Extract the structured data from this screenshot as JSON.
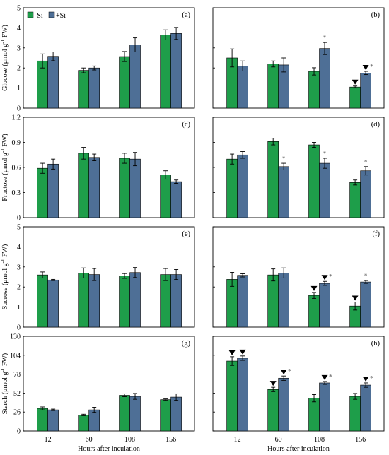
{
  "figure": {
    "x_axis_label": "Hours after inculation",
    "colors": {
      "noSi": "#1e9e4a",
      "Si": "#4e6f96",
      "axis": "#000000",
      "error": "#000000"
    }
  },
  "chart_data": [
    {
      "type": "bar",
      "panel": "(a)",
      "ylabel_prefix": "Glucose (μmol g",
      "ylabel_suffix": " FW)",
      "ylim": [
        0,
        5
      ],
      "yticks": [
        0,
        1,
        2,
        3,
        4,
        5
      ],
      "ytick_labels": [
        "0",
        "1",
        "2",
        "3",
        "4",
        "5"
      ],
      "categories": [
        "12",
        "60",
        "108",
        "156"
      ],
      "show_xticks": false,
      "legend": [
        "-Si",
        "+Si"
      ],
      "series": [
        {
          "name": "-Si",
          "values": [
            2.35,
            1.88,
            2.57,
            3.65
          ],
          "errors": [
            0.35,
            0.12,
            0.25,
            0.25
          ],
          "down": [
            false,
            false,
            false,
            false
          ],
          "star": [
            false,
            false,
            false,
            false
          ]
        },
        {
          "name": "+Si",
          "values": [
            2.58,
            2.0,
            3.15,
            3.72
          ],
          "errors": [
            0.22,
            0.1,
            0.35,
            0.3
          ],
          "down": [
            false,
            false,
            false,
            false
          ],
          "star": [
            false,
            false,
            false,
            false
          ]
        }
      ]
    },
    {
      "type": "bar",
      "panel": "(b)",
      "ylim": [
        0,
        5
      ],
      "yticks": [
        0,
        1,
        2,
        3,
        4,
        5
      ],
      "ytick_labels": [],
      "categories": [
        "12",
        "60",
        "108",
        "156"
      ],
      "show_xticks": false,
      "series": [
        {
          "name": "-Si",
          "values": [
            2.5,
            2.2,
            1.83,
            1.05
          ],
          "errors": [
            0.45,
            0.15,
            0.18,
            0.05
          ],
          "down": [
            false,
            false,
            false,
            true
          ],
          "star": [
            false,
            false,
            false,
            false
          ]
        },
        {
          "name": "+Si",
          "values": [
            2.1,
            2.15,
            2.97,
            1.75
          ],
          "errors": [
            0.25,
            0.35,
            0.3,
            0.08
          ],
          "down": [
            false,
            false,
            false,
            true
          ],
          "star": [
            false,
            false,
            true,
            true
          ]
        }
      ]
    },
    {
      "type": "bar",
      "panel": "(c)",
      "ylabel": "Fructose (μmol g",
      "ylabel_suffix": " FW)",
      "ylim": [
        0,
        1.2
      ],
      "yticks": [
        0,
        0.3,
        0.6,
        0.9,
        1.2
      ],
      "ytick_labels": [
        "0",
        "0.3",
        "0.6",
        "0.9",
        "1.2"
      ],
      "categories": [
        "12",
        "60",
        "108",
        "156"
      ],
      "show_xticks": false,
      "series": [
        {
          "name": "-Si",
          "values": [
            0.59,
            0.77,
            0.71,
            0.51
          ],
          "errors": [
            0.06,
            0.07,
            0.06,
            0.05
          ],
          "down": [
            false,
            false,
            false,
            false
          ],
          "star": [
            false,
            false,
            false,
            false
          ]
        },
        {
          "name": "+Si",
          "values": [
            0.64,
            0.72,
            0.7,
            0.43
          ],
          "errors": [
            0.06,
            0.04,
            0.08,
            0.02
          ],
          "down": [
            false,
            false,
            false,
            false
          ],
          "star": [
            false,
            false,
            false,
            false
          ]
        }
      ]
    },
    {
      "type": "bar",
      "panel": "(d)",
      "ylim": [
        0,
        1.2
      ],
      "yticks": [
        0,
        0.3,
        0.6,
        0.9,
        1.2
      ],
      "ytick_labels": [],
      "categories": [
        "12",
        "60",
        "108",
        "156"
      ],
      "show_xticks": false,
      "series": [
        {
          "name": "-Si",
          "values": [
            0.7,
            0.91,
            0.87,
            0.42
          ],
          "errors": [
            0.06,
            0.04,
            0.03,
            0.03
          ],
          "down": [
            false,
            false,
            false,
            false
          ],
          "star": [
            false,
            false,
            false,
            false
          ]
        },
        {
          "name": "+Si",
          "values": [
            0.75,
            0.61,
            0.65,
            0.56
          ],
          "errors": [
            0.04,
            0.04,
            0.06,
            0.05
          ],
          "down": [
            false,
            false,
            false,
            false
          ],
          "star": [
            false,
            true,
            true,
            true
          ]
        }
      ]
    },
    {
      "type": "bar",
      "panel": "(e)",
      "ylabel": "Sucrose (μmol g",
      "ylabel_suffix": " FW)",
      "ylim": [
        0,
        5
      ],
      "yticks": [
        0,
        1,
        2,
        3,
        4,
        5
      ],
      "ytick_labels": [
        "0",
        "1",
        "2",
        "3",
        "4",
        "5"
      ],
      "categories": [
        "12",
        "60",
        "108",
        "156"
      ],
      "show_xticks": false,
      "series": [
        {
          "name": "-Si",
          "values": [
            2.6,
            2.7,
            2.55,
            2.62
          ],
          "errors": [
            0.15,
            0.25,
            0.12,
            0.3
          ],
          "down": [
            false,
            false,
            false,
            false
          ],
          "star": [
            false,
            false,
            false,
            false
          ]
        },
        {
          "name": "+Si",
          "values": [
            2.35,
            2.62,
            2.72,
            2.62
          ],
          "errors": [
            0.03,
            0.3,
            0.25,
            0.25
          ],
          "down": [
            false,
            false,
            false,
            false
          ],
          "star": [
            false,
            false,
            false,
            false
          ]
        }
      ]
    },
    {
      "type": "bar",
      "panel": "(f)",
      "ylim": [
        0,
        5
      ],
      "yticks": [
        0,
        1,
        2,
        3,
        4,
        5
      ],
      "ytick_labels": [],
      "categories": [
        "12",
        "60",
        "108",
        "156"
      ],
      "show_xticks": false,
      "series": [
        {
          "name": "-Si",
          "values": [
            2.38,
            2.6,
            1.58,
            1.05
          ],
          "errors": [
            0.35,
            0.3,
            0.15,
            0.2
          ],
          "down": [
            false,
            false,
            true,
            true
          ],
          "star": [
            false,
            false,
            false,
            false
          ]
        },
        {
          "name": "+Si",
          "values": [
            2.58,
            2.7,
            2.18,
            2.25
          ],
          "errors": [
            0.08,
            0.25,
            0.1,
            0.07
          ],
          "down": [
            false,
            false,
            true,
            false
          ],
          "star": [
            false,
            false,
            true,
            true
          ]
        }
      ]
    },
    {
      "type": "bar",
      "panel": "(g)",
      "ylabel": "Starch (μmol g",
      "ylabel_suffix": " FW)",
      "ylim": [
        0,
        130
      ],
      "yticks": [
        0,
        26,
        52,
        78,
        104,
        130
      ],
      "ytick_labels": [
        "0",
        "26",
        "52",
        "78",
        "104",
        "130"
      ],
      "categories": [
        "12",
        "60",
        "108",
        "156"
      ],
      "show_xticks": true,
      "series": [
        {
          "name": "-Si",
          "values": [
            31,
            22,
            49,
            43
          ],
          "errors": [
            2.0,
            1.0,
            2.0,
            1.0
          ],
          "down": [
            false,
            false,
            false,
            false
          ],
          "star": [
            false,
            false,
            false,
            false
          ]
        },
        {
          "name": "+Si",
          "values": [
            29,
            29,
            47.5,
            46.5
          ],
          "errors": [
            1.0,
            3.5,
            4.0,
            4.5
          ],
          "down": [
            false,
            false,
            false,
            false
          ],
          "star": [
            false,
            false,
            false,
            false
          ]
        }
      ]
    },
    {
      "type": "bar",
      "panel": "(h)",
      "ylim": [
        0,
        130
      ],
      "yticks": [
        0,
        26,
        52,
        78,
        104,
        130
      ],
      "ytick_labels": [],
      "categories": [
        "12",
        "60",
        "108",
        "156"
      ],
      "show_xticks": true,
      "series": [
        {
          "name": "-Si",
          "values": [
            96,
            57,
            45,
            47.5
          ],
          "errors": [
            6.0,
            3.0,
            5.0,
            4.0
          ],
          "down": [
            true,
            true,
            false,
            false
          ],
          "star": [
            false,
            false,
            false,
            false
          ]
        },
        {
          "name": "+Si",
          "values": [
            100,
            72.5,
            66,
            63
          ],
          "errors": [
            3.0,
            3.0,
            2.0,
            3.0
          ],
          "down": [
            true,
            true,
            true,
            true
          ],
          "star": [
            false,
            true,
            true,
            true
          ]
        }
      ]
    }
  ]
}
